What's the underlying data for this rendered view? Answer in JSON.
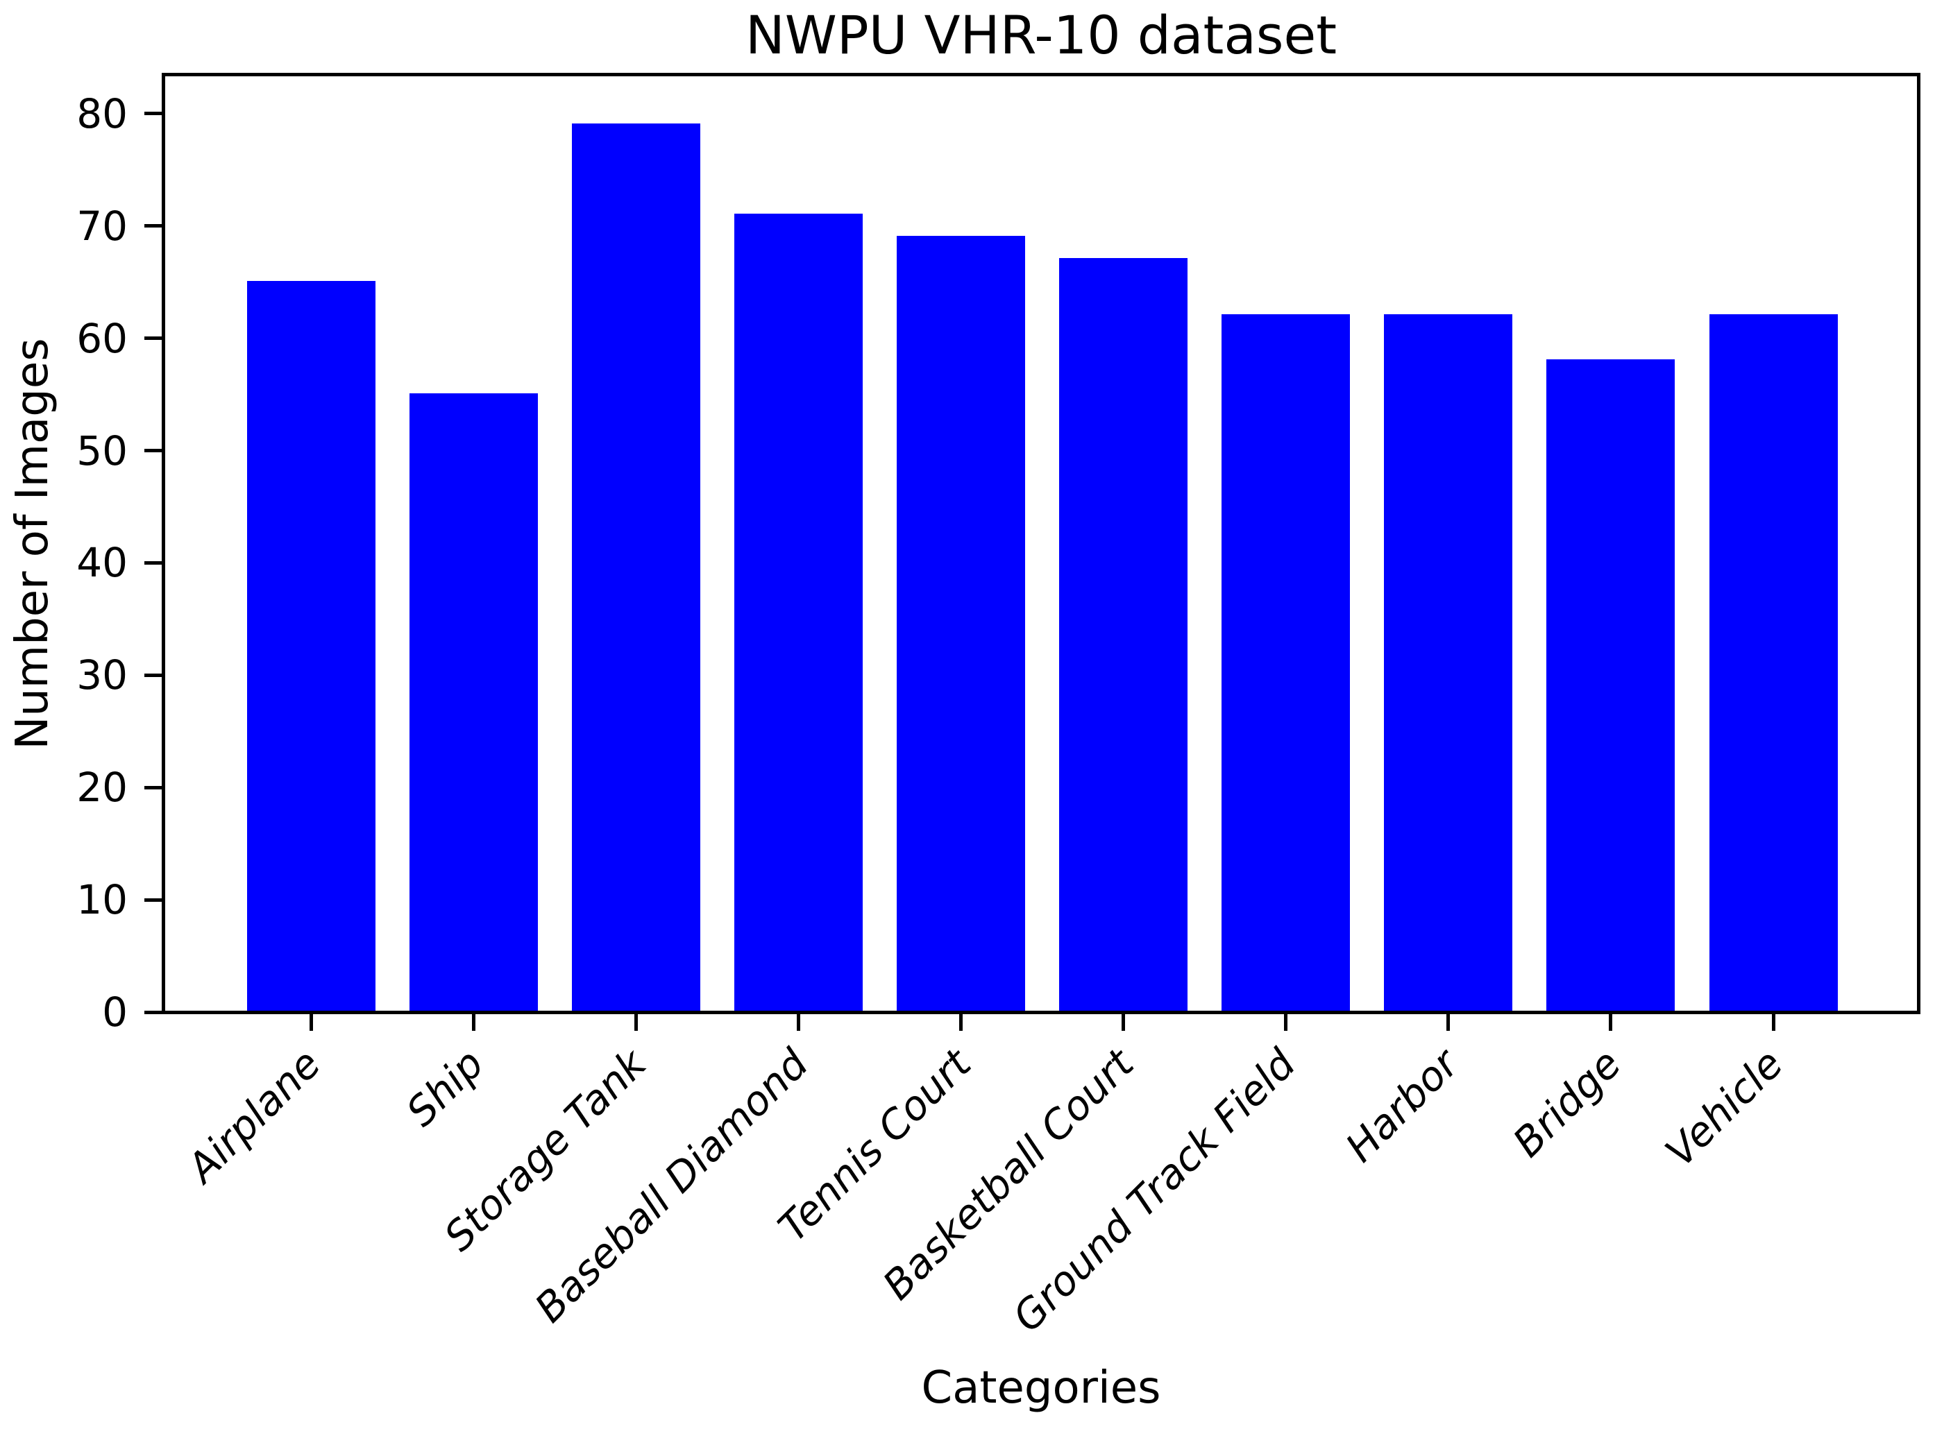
{
  "chart_data": {
    "type": "bar",
    "title": "NWPU VHR-10 dataset",
    "xlabel": "Categories",
    "ylabel": "Number of Images",
    "categories": [
      "Airplane",
      "Ship",
      "Storage Tank",
      "Baseball Diamond",
      "Tennis Court",
      "Basketball Court",
      "Ground Track Field",
      "Harbor",
      "Bridge",
      "Vehicle"
    ],
    "values": [
      65,
      55,
      79,
      71,
      69,
      67,
      62,
      62,
      58,
      62
    ],
    "yticks": [
      0,
      10,
      20,
      30,
      40,
      50,
      60,
      70,
      80
    ],
    "ylim": [
      0,
      83.2
    ],
    "bar_color": "#0000ff",
    "axis_color": "#000000",
    "grid": false,
    "legend": "none",
    "xtick_label_rotation_deg": 45,
    "xtick_label_style": "italic"
  }
}
